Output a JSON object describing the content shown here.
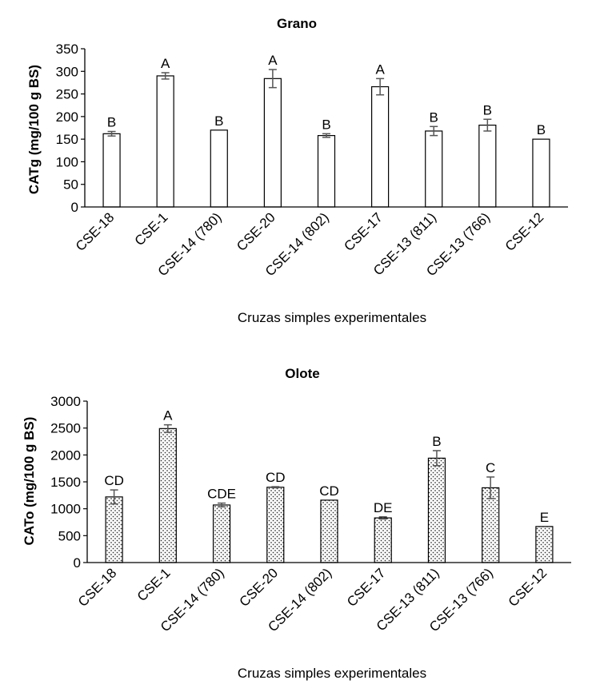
{
  "chart_data": [
    {
      "type": "bar",
      "title": "Grano",
      "ylabel": "CATg (mg/100 g BS)",
      "xlabel": "Cruzas simples experimentales",
      "ylim": [
        0,
        350
      ],
      "yticks": [
        0,
        50,
        100,
        150,
        200,
        250,
        300,
        350
      ],
      "categories": [
        "CSE-18",
        "CSE-1",
        "CSE-14 (780)",
        "CSE-20",
        "CSE-14 (802)",
        "CSE-17",
        "CSE-13 (811)",
        "CSE-13 (766)",
        "CSE-12"
      ],
      "values": [
        162,
        290,
        170,
        284,
        158,
        266,
        168,
        181,
        150
      ],
      "errors": [
        5,
        7,
        0,
        20,
        4,
        18,
        10,
        13,
        0
      ],
      "letters": [
        "B",
        "A",
        "B",
        "A",
        "B",
        "A",
        "B",
        "B",
        "B"
      ],
      "fill": "white",
      "grid": false
    },
    {
      "type": "bar",
      "title": "Olote",
      "ylabel": "CATo (mg/100 g BS)",
      "xlabel": "Cruzas simples experimentales",
      "ylim": [
        0,
        3000
      ],
      "yticks": [
        0,
        500,
        1000,
        1500,
        2000,
        2500,
        3000
      ],
      "categories": [
        "CSE-18",
        "CSE-1",
        "CSE-14 (780)",
        "CSE-20",
        "CSE-14 (802)",
        "CSE-17",
        "CSE-13 (811)",
        "CSE-13 (766)",
        "CSE-12"
      ],
      "values": [
        1220,
        2490,
        1070,
        1400,
        1160,
        830,
        1940,
        1390,
        670
      ],
      "errors": [
        130,
        70,
        35,
        10,
        0,
        20,
        140,
        200,
        0
      ],
      "letters": [
        "CD",
        "A",
        "CDE",
        "CD",
        "CD",
        "DE",
        "B",
        "C",
        "E"
      ],
      "fill": "dotted",
      "grid": false
    }
  ]
}
